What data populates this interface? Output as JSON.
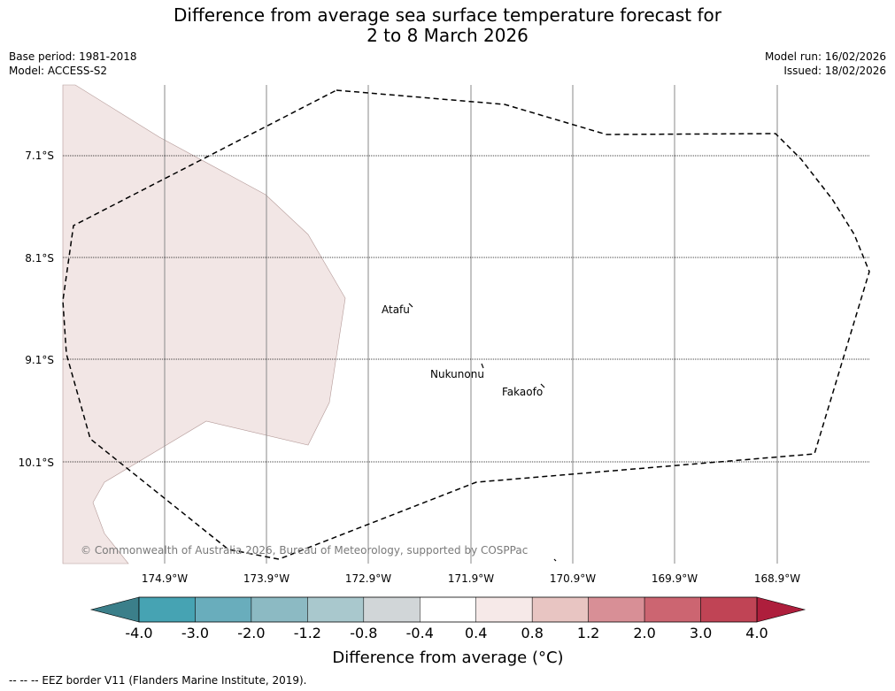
{
  "header": {
    "title_line1": "Difference from average sea surface temperature forecast for",
    "title_line2": "2 to 8 March 2026",
    "base_period": "Base period: 1981-2018",
    "model": "Model: ACCESS-S2",
    "model_run": "Model run: 16/02/2026",
    "issued": "Issued: 18/02/2026"
  },
  "map": {
    "lat_labels": [
      "7.1°S",
      "8.1°S",
      "9.1°S",
      "10.1°S"
    ],
    "lon_labels": [
      "174.9°W",
      "173.9°W",
      "172.9°W",
      "171.9°W",
      "170.9°W",
      "169.9°W",
      "168.9°W"
    ],
    "places": [
      "Atafu",
      "Nukunonu",
      "Fakaofo"
    ],
    "copyright": "© Commonwealth of Australia 2026, Bureau of Meteorology, supported by COSPPac"
  },
  "colorbar": {
    "ticks": [
      "-4.0",
      "-3.0",
      "-2.0",
      "-1.2",
      "-0.8",
      "-0.4",
      "0.4",
      "0.8",
      "1.2",
      "2.0",
      "3.0",
      "4.0"
    ],
    "colors": [
      "#46a3b3",
      "#69adbc",
      "#8cbac3",
      "#a9c8cd",
      "#d1d6d8",
      "#ffffff",
      "#f6e9e8",
      "#e8c5c2",
      "#d88f96",
      "#cc6571",
      "#c04455"
    ],
    "under_color": "#3b7f8a",
    "over_color": "#ae1e3c",
    "fill_color": "#f2e6e5",
    "label": "Difference from average (°C)"
  },
  "footer": {
    "legend": "--  --  -- EEZ border V11 (Flanders Marine Institute, 2019)."
  }
}
